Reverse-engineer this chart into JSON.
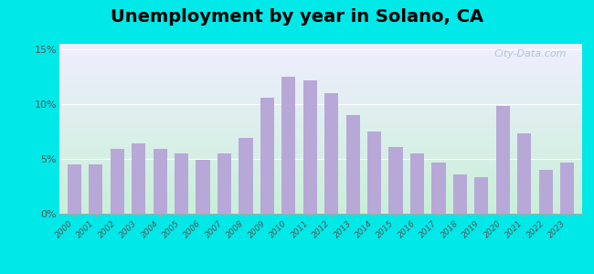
{
  "title": "Unemployment by year in Solano, CA",
  "years": [
    2000,
    2001,
    2002,
    2003,
    2004,
    2005,
    2006,
    2007,
    2008,
    2009,
    2010,
    2011,
    2012,
    2013,
    2014,
    2015,
    2016,
    2017,
    2018,
    2019,
    2020,
    2021,
    2022,
    2023
  ],
  "values": [
    4.5,
    4.5,
    5.9,
    6.4,
    5.9,
    5.5,
    4.9,
    5.5,
    6.9,
    10.6,
    12.5,
    12.2,
    11.0,
    9.0,
    7.5,
    6.1,
    5.5,
    4.7,
    3.6,
    3.3,
    9.8,
    7.3,
    4.0,
    4.7
  ],
  "bar_color": "#b8a8d8",
  "yticks": [
    0,
    5,
    10,
    15
  ],
  "ytick_labels": [
    "0%",
    "5%",
    "10%",
    "15%"
  ],
  "ylim": [
    0,
    15.5
  ],
  "outer_bg": "#00e8e8",
  "watermark": "City-Data.com",
  "title_fontsize": 14,
  "grad_bottom_left": "#c8f0d8",
  "grad_top_right": "#f0eeff"
}
